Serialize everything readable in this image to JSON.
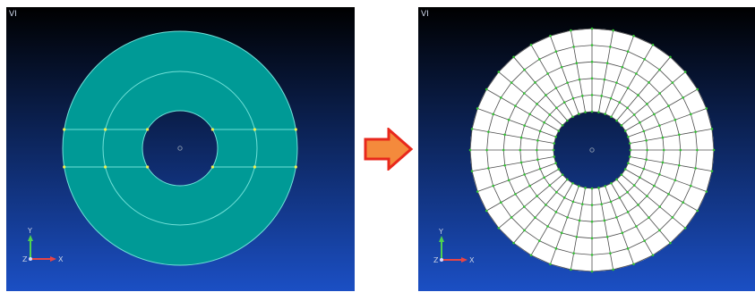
{
  "left_viewport": {
    "label": "VI",
    "axis_triad": {
      "y": "Y",
      "z": "Z",
      "x": "X"
    },
    "background_top": "#000000",
    "background_bottom": "#1b4fc4",
    "model_fill": "#009a96",
    "edge_color": "#6fe0d8",
    "node_color": "#f2f24d",
    "origin_color": "#8090a8"
  },
  "right_viewport": {
    "label": "VI",
    "axis_triad": {
      "y": "Y",
      "z": "Z",
      "x": "X"
    },
    "background_top": "#000000",
    "background_bottom": "#1b4fc4",
    "mesh_fill": "#ffffff",
    "mesh_line_color": "#4c4c4c",
    "node_color": "#33c233",
    "radial_divisions": 5,
    "circumferential_divisions": 36
  },
  "transition_arrow": {
    "icon": "right-arrow-icon",
    "fill": "#f48a3c",
    "stroke": "#e8281c"
  }
}
